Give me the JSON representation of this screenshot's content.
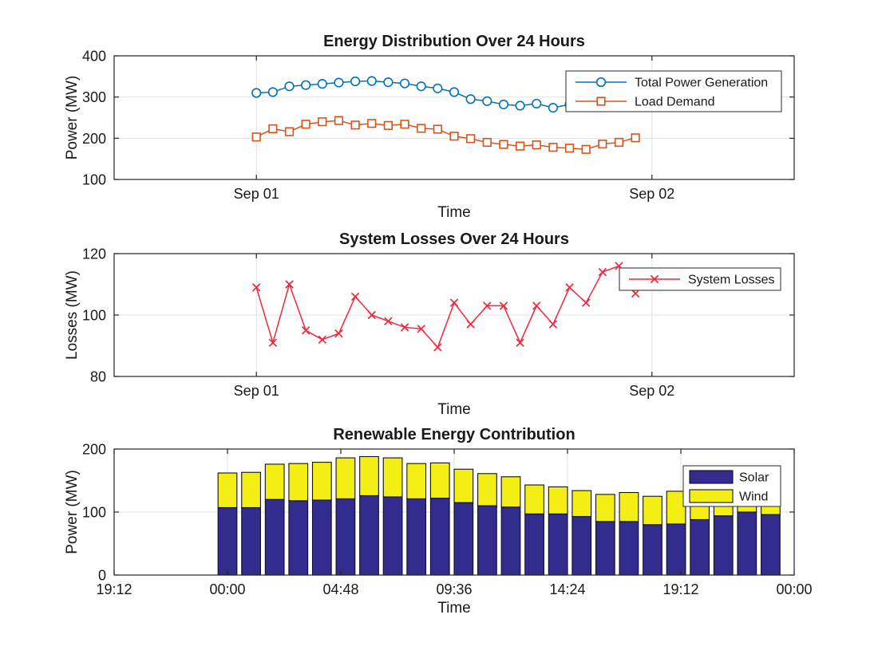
{
  "figure": {
    "background": "#ffffff",
    "axis_color": "#262626",
    "grid_color": "#e2e2e2",
    "legend_border_color": "#3c3c3c",
    "text_color": "#1a1a1a"
  },
  "chart_data": [
    {
      "type": "line",
      "title": "Energy Distribution Over 24 Hours",
      "xlabel": "Time",
      "ylabel": "Power (MW)",
      "xlim_hours": [
        -8.63,
        32.63
      ],
      "ylim": [
        100,
        400
      ],
      "yticks": [
        100,
        200,
        300,
        400
      ],
      "xticks": [
        {
          "hour": 0,
          "label": "Sep 01"
        },
        {
          "hour": 24,
          "label": "Sep 02"
        }
      ],
      "x_start_hour": 0,
      "x_step_hours": 1,
      "grid": true,
      "legend_location": "upper right",
      "series": [
        {
          "name": "Total Power Generation",
          "color": "#0072BD",
          "marker": "circle",
          "values": [
            310,
            312,
            326,
            329,
            332,
            335,
            338,
            339,
            336,
            333,
            326,
            321,
            312,
            295,
            290,
            282,
            279,
            284,
            274,
            282,
            285,
            289,
            287,
            292
          ]
        },
        {
          "name": "Load Demand",
          "color": "#D95319",
          "marker": "square",
          "values": [
            203,
            223,
            216,
            234,
            240,
            243,
            232,
            236,
            231,
            234,
            224,
            222,
            205,
            199,
            190,
            185,
            181,
            184,
            178,
            176,
            173,
            186,
            190,
            201
          ]
        }
      ]
    },
    {
      "type": "line",
      "title": "System Losses Over 24 Hours",
      "xlabel": "Time",
      "ylabel": "Losses (MW)",
      "xlim_hours": [
        -8.63,
        32.63
      ],
      "ylim": [
        80,
        120
      ],
      "yticks": [
        80,
        100,
        120
      ],
      "xticks": [
        {
          "hour": 0,
          "label": "Sep 01"
        },
        {
          "hour": 24,
          "label": "Sep 02"
        }
      ],
      "x_start_hour": 0,
      "x_step_hours": 1,
      "grid": true,
      "legend_location": "upper right",
      "series": [
        {
          "name": "System Losses",
          "color": "#F0283C",
          "marker": "x",
          "values": [
            109,
            91,
            110,
            95,
            92,
            94,
            106,
            100,
            98,
            96,
            95.5,
            89.5,
            104,
            97,
            103,
            103,
            91,
            103,
            97,
            109,
            104,
            114,
            116,
            107
          ]
        }
      ]
    },
    {
      "type": "bar-stacked",
      "title": "Renewable Energy Contribution",
      "xlabel": "Time",
      "ylabel": "Power (MW)",
      "xlim_hours": [
        -4.8,
        24
      ],
      "ylim": [
        0,
        200
      ],
      "yticks": [
        0,
        100,
        200
      ],
      "xticks": [
        {
          "hour": -4.8,
          "label": "19:12"
        },
        {
          "hour": 0,
          "label": "00:00"
        },
        {
          "hour": 4.8,
          "label": "04:48"
        },
        {
          "hour": 9.6,
          "label": "09:36"
        },
        {
          "hour": 14.4,
          "label": "14:24"
        },
        {
          "hour": 19.2,
          "label": "19:12"
        },
        {
          "hour": 24,
          "label": "00:00"
        }
      ],
      "x_start_hour": 0,
      "x_step_hours": 1,
      "bar_width_hours": 0.8,
      "bar_edge_color": "#101020",
      "grid": true,
      "legend_location": "upper right",
      "series": [
        {
          "name": "Solar",
          "color": "#332C8F",
          "values": [
            107,
            107,
            120,
            118,
            119,
            121,
            126,
            124,
            121,
            122,
            115,
            110,
            108,
            97,
            97,
            93,
            85,
            85,
            80,
            81,
            88,
            94,
            100,
            96
          ]
        },
        {
          "name": "Wind",
          "color": "#F3EF15",
          "values": [
            55,
            56,
            56,
            59,
            60,
            65,
            62,
            62,
            56,
            56,
            53,
            51,
            48,
            46,
            43,
            41,
            43,
            46,
            45,
            52,
            38,
            30,
            26,
            32
          ]
        }
      ]
    }
  ]
}
